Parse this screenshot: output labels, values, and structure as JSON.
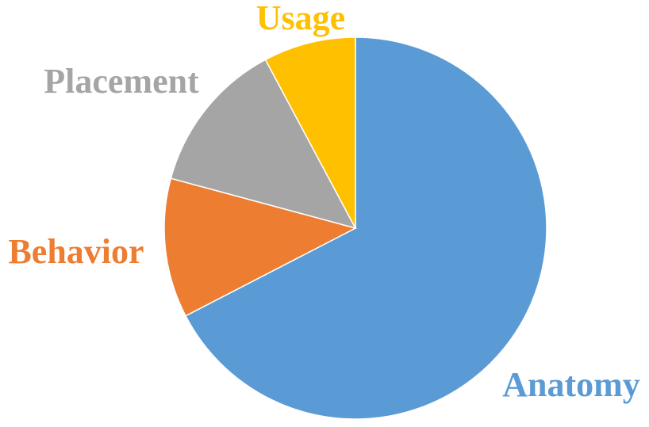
{
  "chart_data": {
    "type": "pie",
    "title": "",
    "start_angle_deg": 0,
    "direction": "clockwise",
    "labels": [
      "Anatomy",
      "Behavior",
      "Placement",
      "Usage"
    ],
    "values": [
      67.4,
      11.8,
      13.0,
      7.8
    ],
    "unit": "%",
    "colors": [
      "#5B9BD5",
      "#ED7D31",
      "#A5A5A5",
      "#FFC000"
    ],
    "legend": "none",
    "data_labels": "category names outside slices, colored to match"
  }
}
